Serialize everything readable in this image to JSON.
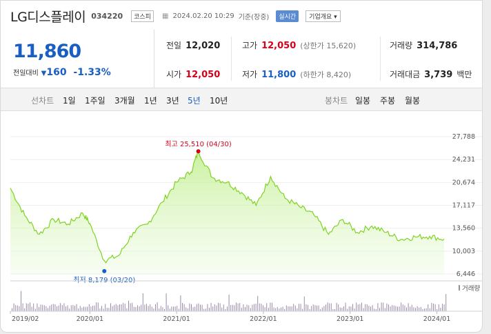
{
  "header": {
    "name": "LG디스플레이",
    "code": "034220",
    "market": "코스피",
    "datetime": "2024.02.20 10:29",
    "status": "기준(장중)",
    "realtime_badge": "실시간",
    "company_menu": "기업개요 ▾"
  },
  "price": {
    "current": "11,860",
    "change_label": "전일대비",
    "change_arrow": "▼",
    "change_value": "160",
    "change_percent": "-1.33%"
  },
  "quote": {
    "prev_close": {
      "label": "전일",
      "value": "12,020"
    },
    "high": {
      "label": "고가",
      "value": "12,050",
      "sub": "(상한가 15,620)"
    },
    "volume": {
      "label": "거래량",
      "value": "314,786"
    },
    "open": {
      "label": "시가",
      "value": "12,050"
    },
    "low": {
      "label": "저가",
      "value": "11,800",
      "sub": "(하한가 8,420)"
    },
    "amount": {
      "label": "거래대금",
      "value": "3,739",
      "unit": "백만"
    }
  },
  "tabs": {
    "line_label": "선차트",
    "line_periods": [
      "1일",
      "1주일",
      "3개월",
      "1년",
      "3년",
      "5년",
      "10년"
    ],
    "active_period": "5년",
    "candle_label": "봉차트",
    "candle_periods": [
      "일봉",
      "주봉",
      "월봉"
    ]
  },
  "chart_data": {
    "type": "area",
    "color": "#7ed321",
    "x": [
      "2019/02",
      "2019/04",
      "2019/06",
      "2019/08",
      "2019/10",
      "2019/12",
      "2020/01",
      "2020/03",
      "2020/05",
      "2020/07",
      "2020/09",
      "2020/11",
      "2021/01",
      "2021/03",
      "2021/04",
      "2021/06",
      "2021/08",
      "2021/10",
      "2021/12",
      "2022/02",
      "2022/04",
      "2022/06",
      "2022/08",
      "2022/10",
      "2022/12",
      "2023/02",
      "2023/04",
      "2023/06",
      "2023/08",
      "2023/10",
      "2023/12",
      "2024/02"
    ],
    "y": [
      19800,
      15500,
      12600,
      14900,
      14200,
      15900,
      14300,
      8500,
      9300,
      12900,
      14200,
      17600,
      20700,
      22300,
      25510,
      21400,
      20700,
      19100,
      17100,
      21600,
      18200,
      16900,
      15600,
      12600,
      14900,
      12900,
      13900,
      12900,
      11800,
      12200,
      12300,
      11860
    ],
    "y_ticks": [
      "27,788",
      "24,231",
      "20,674",
      "17,117",
      "13,560",
      "10,003",
      "6,446"
    ],
    "ylim": [
      6446,
      27788
    ],
    "x_ticks": [
      "2019/02",
      "2020/01",
      "2021/01",
      "2022/01",
      "2023/01",
      "2024/01"
    ],
    "max_label": "최고 25,510 (04/30)",
    "min_label": "최저 8,179 (03/20)",
    "max_point": {
      "x": "2021/04",
      "y": 25510
    },
    "min_point": {
      "x": "2020/03",
      "y": 8179
    },
    "volume_label": "거래량",
    "volume_color": "#9b8aa8",
    "grid": true
  }
}
